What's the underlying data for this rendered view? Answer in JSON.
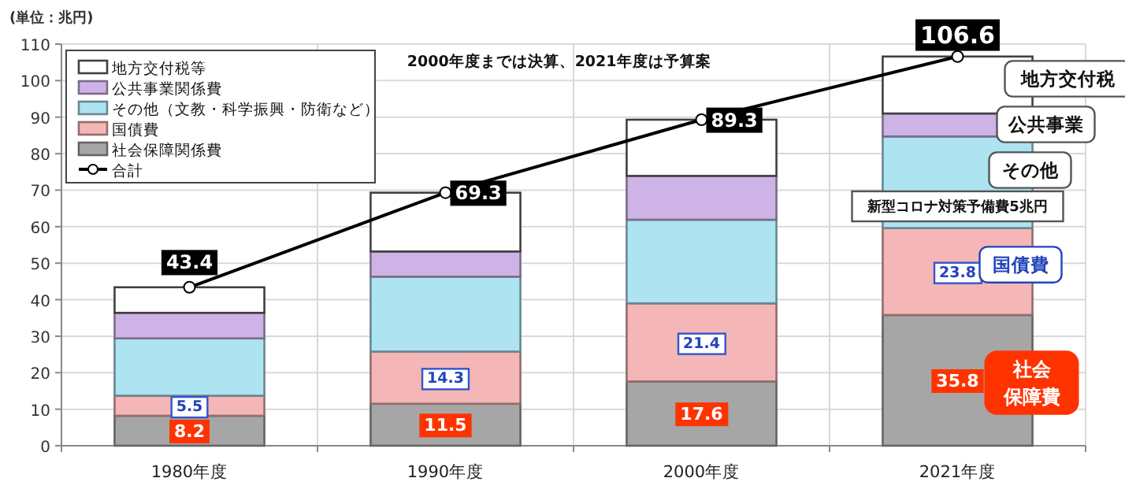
{
  "chart_data": {
    "type": "bar",
    "stacked": true,
    "ylabel": "(単位：兆円)",
    "categories": [
      "1980年度",
      "1990年度",
      "2000年度",
      "2021年度"
    ],
    "ylim": [
      0,
      110
    ],
    "yticks": [
      0,
      10,
      20,
      30,
      40,
      50,
      60,
      70,
      80,
      90,
      100,
      110
    ],
    "grid": true,
    "legend": "top left",
    "series": [
      {
        "name": "社会保障関係費",
        "color": "#a6a6a6",
        "values": [
          8.2,
          11.5,
          17.6,
          35.8
        ],
        "value_labels": [
          "8.2",
          "11.5",
          "17.6",
          "35.8"
        ]
      },
      {
        "name": "国債費",
        "color": "#f4b6b6",
        "values": [
          5.5,
          14.3,
          21.4,
          23.8
        ],
        "value_labels": [
          "5.5",
          "14.3",
          "21.4",
          "23.8"
        ]
      },
      {
        "name": "その他（文教・科学振興・防衛など）",
        "color": "#aee3f2",
        "values": [
          15.7,
          20.5,
          22.9,
          25.1
        ]
      },
      {
        "name": "公共事業関係費",
        "color": "#cdb3e6",
        "values": [
          7.0,
          6.9,
          12.0,
          6.3
        ]
      },
      {
        "name": "地方交付税等",
        "color": "#ffffff",
        "values": [
          7.0,
          16.1,
          15.4,
          15.6
        ]
      },
      {
        "name": "合計",
        "type": "line",
        "color": "#000000",
        "marker": "circle",
        "values": [
          43.4,
          69.3,
          89.3,
          106.6
        ],
        "value_labels": [
          "43.4",
          "69.3",
          "89.3",
          "106.6"
        ]
      }
    ],
    "annotations": [
      "2000年度までは決算、2021年度は予算案",
      "地方交付税",
      "公共事業",
      "その他",
      "新型コロナ対策予備費5兆円",
      "国債費",
      "社会保障費"
    ]
  }
}
